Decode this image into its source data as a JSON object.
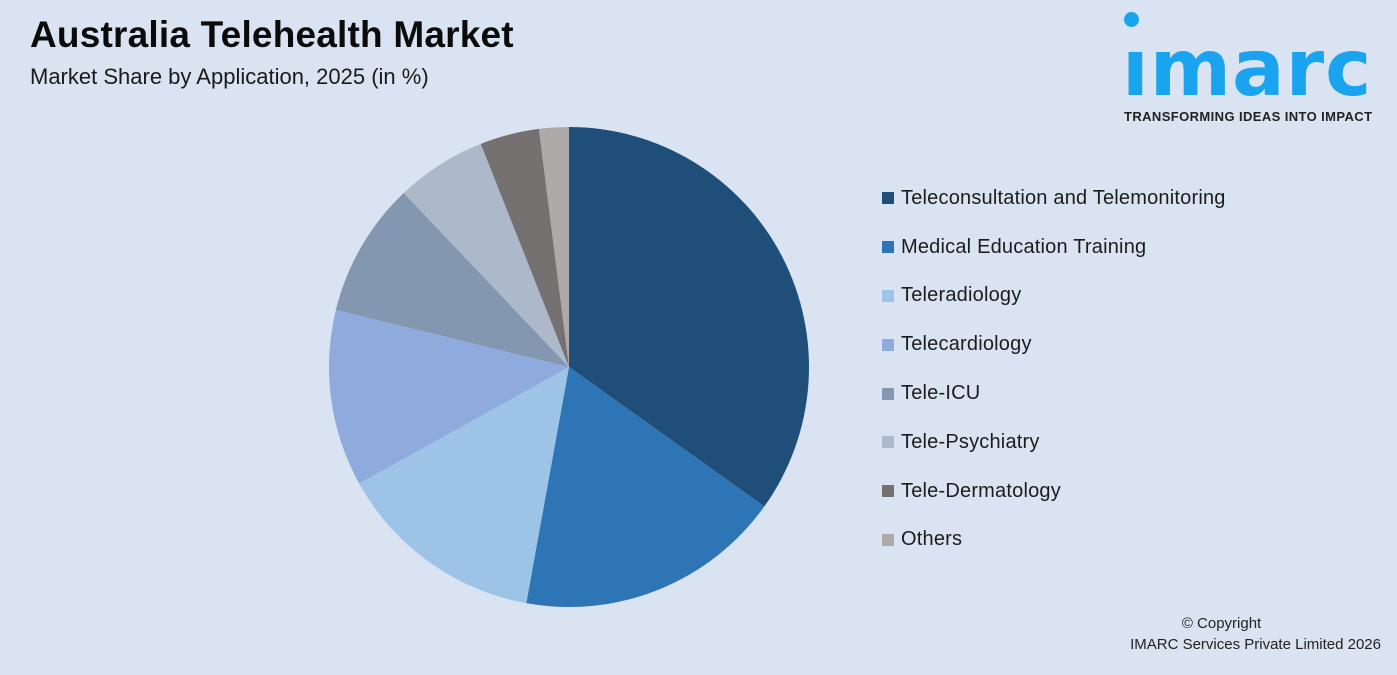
{
  "header": {
    "title": "Australia Telehealth Market",
    "subtitle": "Market Share by Application, 2025 (in %)"
  },
  "logo": {
    "wordmark": "imarc",
    "tagline": "TRANSFORMING IDEAS INTO IMPACT",
    "color": "#1aa3ee"
  },
  "footer": {
    "copyright_line1": "© Copyright",
    "copyright_line2": "IMARC Services Private Limited 2026"
  },
  "chart_data": {
    "type": "pie",
    "title": "Australia Telehealth Market",
    "subtitle": "Market Share by Application, 2025 (in %)",
    "start_angle_deg": 0,
    "direction": "clockwise",
    "legend_position": "right",
    "data_labels": false,
    "categories": [
      "Teleconsultation and Telemonitoring",
      "Medical Education Training",
      "Teleradiology",
      "Telecardiology",
      "Tele-ICU",
      "Tele-Psychiatry",
      "Tele-Dermatology",
      "Others"
    ],
    "values": [
      34.9,
      18.0,
      14.1,
      11.9,
      9.1,
      6.1,
      4.0,
      2.0
    ],
    "colors": [
      "#1f4e79",
      "#2e75b6",
      "#9dc3e6",
      "#8faadc",
      "#8497b0",
      "#adb9ca",
      "#767171",
      "#aeaaaa"
    ]
  }
}
